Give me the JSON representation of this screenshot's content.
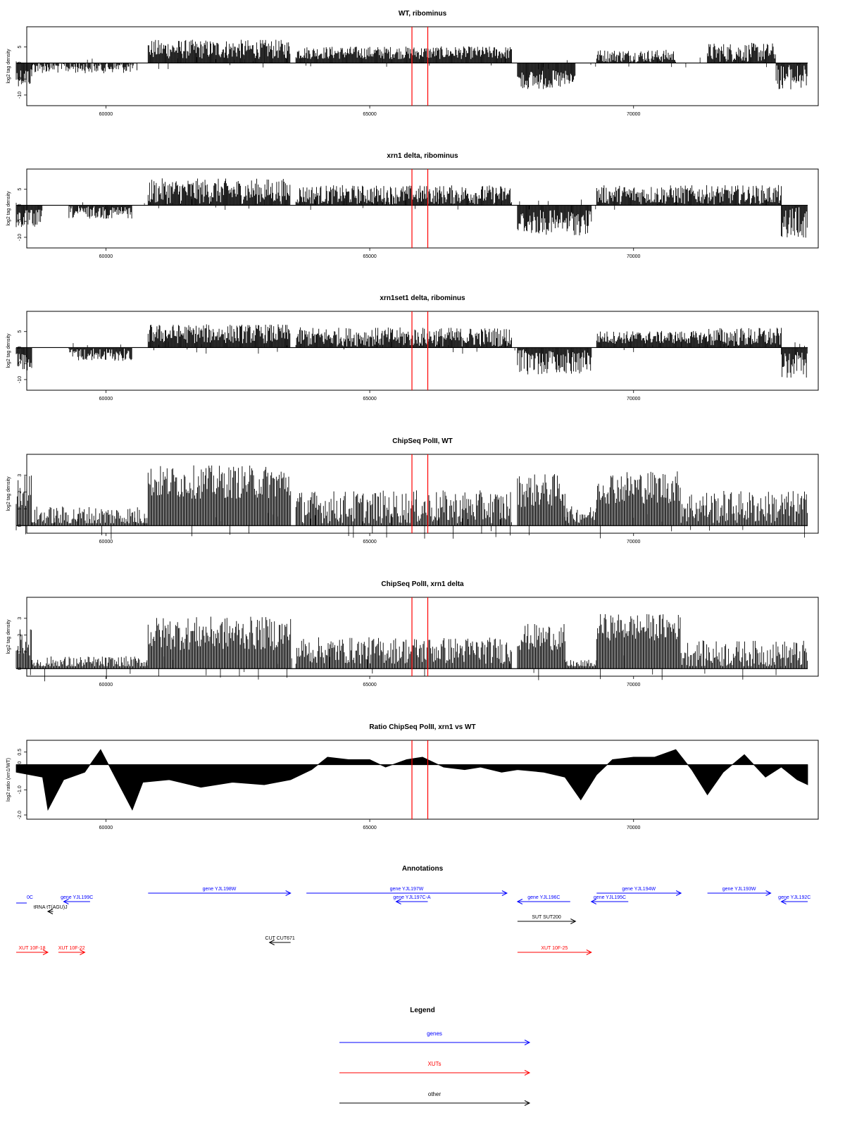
{
  "colors": {
    "axis": "#000000",
    "bars": "#000000",
    "marker": "#ff0000",
    "gene": "#0000ff",
    "xut": "#ff0000",
    "other": "#000000"
  },
  "chart_data": [
    {
      "type": "bar",
      "title": "WT, ribominus",
      "ylabel": "log2 tag density",
      "xlim": [
        58500,
        73500
      ],
      "ylim": [
        -12,
        10
      ],
      "yticks": [
        -10,
        -5,
        0,
        5
      ],
      "xticks": [
        60000,
        65000,
        70000
      ],
      "markers_x": [
        65800,
        66100
      ],
      "segments": [
        {
          "start": 58300,
          "end": 58600,
          "sign": -1,
          "mean": 4,
          "amp": 3
        },
        {
          "start": 58600,
          "end": 60600,
          "sign": -1,
          "mean": 1,
          "amp": 2
        },
        {
          "start": 60800,
          "end": 63500,
          "sign": 1,
          "mean": 4,
          "amp": 3
        },
        {
          "start": 63600,
          "end": 67700,
          "sign": 1,
          "mean": 3,
          "amp": 2
        },
        {
          "start": 67800,
          "end": 68900,
          "sign": -1,
          "mean": 5,
          "amp": 3
        },
        {
          "start": 69300,
          "end": 70800,
          "sign": 1,
          "mean": 2,
          "amp": 2
        },
        {
          "start": 71400,
          "end": 72700,
          "sign": 1,
          "mean": 3,
          "amp": 3
        },
        {
          "start": 72700,
          "end": 73300,
          "sign": -1,
          "mean": 4,
          "amp": 4
        }
      ]
    },
    {
      "type": "bar",
      "title": "xrn1 delta, ribominus",
      "ylabel": "log2 tag density",
      "xlim": [
        58500,
        73500
      ],
      "ylim": [
        -12,
        10
      ],
      "yticks": [
        -10,
        -5,
        0,
        5
      ],
      "xticks": [
        60000,
        65000,
        70000
      ],
      "markers_x": [
        65800,
        66100
      ],
      "segments": [
        {
          "start": 58300,
          "end": 58800,
          "sign": -1,
          "mean": 4,
          "amp": 3
        },
        {
          "start": 59300,
          "end": 60500,
          "sign": -1,
          "mean": 2,
          "amp": 2
        },
        {
          "start": 60800,
          "end": 63500,
          "sign": 1,
          "mean": 4,
          "amp": 4
        },
        {
          "start": 63600,
          "end": 67700,
          "sign": 1,
          "mean": 3,
          "amp": 3
        },
        {
          "start": 67800,
          "end": 69200,
          "sign": -1,
          "mean": 5,
          "amp": 4
        },
        {
          "start": 69300,
          "end": 71400,
          "sign": 1,
          "mean": 3,
          "amp": 3
        },
        {
          "start": 71400,
          "end": 72800,
          "sign": 1,
          "mean": 3,
          "amp": 3
        },
        {
          "start": 72800,
          "end": 73300,
          "sign": -1,
          "mean": 5,
          "amp": 5
        }
      ]
    },
    {
      "type": "bar",
      "title": "xrn1set1 delta, ribominus",
      "ylabel": "log2 tag density",
      "xlim": [
        58500,
        73500
      ],
      "ylim": [
        -12,
        10
      ],
      "yticks": [
        -10,
        -5,
        0,
        5
      ],
      "xticks": [
        60000,
        65000,
        70000
      ],
      "markers_x": [
        65800,
        66100
      ],
      "segments": [
        {
          "start": 58300,
          "end": 58600,
          "sign": -1,
          "mean": 4,
          "amp": 3
        },
        {
          "start": 59300,
          "end": 60500,
          "sign": -1,
          "mean": 2,
          "amp": 2
        },
        {
          "start": 60800,
          "end": 63500,
          "sign": 1,
          "mean": 4,
          "amp": 3
        },
        {
          "start": 63600,
          "end": 67700,
          "sign": 1,
          "mean": 3,
          "amp": 3
        },
        {
          "start": 67800,
          "end": 69200,
          "sign": -1,
          "mean": 4,
          "amp": 4
        },
        {
          "start": 69300,
          "end": 71400,
          "sign": 1,
          "mean": 3,
          "amp": 2
        },
        {
          "start": 71400,
          "end": 72800,
          "sign": 1,
          "mean": 3,
          "amp": 3
        },
        {
          "start": 72800,
          "end": 73300,
          "sign": -1,
          "mean": 5,
          "amp": 4
        }
      ]
    },
    {
      "type": "bar",
      "title": "ChipSeq PolII, WT",
      "ylabel": "log2 tag density",
      "xlim": [
        58500,
        73500
      ],
      "ylim": [
        -0.2,
        4
      ],
      "yticks": [
        0,
        1,
        2,
        3
      ],
      "xticks": [
        60000,
        65000,
        70000
      ],
      "markers_x": [
        65800,
        66100
      ],
      "segments": [
        {
          "start": 58300,
          "end": 58600,
          "sign": 1,
          "mean": 2,
          "amp": 1
        },
        {
          "start": 58600,
          "end": 60800,
          "sign": 1,
          "mean": 0.5,
          "amp": 0.6
        },
        {
          "start": 60800,
          "end": 63500,
          "sign": 1,
          "mean": 2.5,
          "amp": 1
        },
        {
          "start": 63600,
          "end": 67700,
          "sign": 1,
          "mean": 1,
          "amp": 1
        },
        {
          "start": 67800,
          "end": 68700,
          "sign": 1,
          "mean": 2,
          "amp": 1
        },
        {
          "start": 68700,
          "end": 69300,
          "sign": 1,
          "mean": 0.6,
          "amp": 0.5
        },
        {
          "start": 69300,
          "end": 70900,
          "sign": 1,
          "mean": 2.2,
          "amp": 1
        },
        {
          "start": 70900,
          "end": 73300,
          "sign": 1,
          "mean": 1,
          "amp": 1
        }
      ]
    },
    {
      "type": "bar",
      "title": "ChipSeq PolII, xrn1 delta",
      "ylabel": "log2 tag density",
      "xlim": [
        58500,
        73500
      ],
      "ylim": [
        -0.2,
        4
      ],
      "yticks": [
        0,
        1,
        2,
        3
      ],
      "xticks": [
        60000,
        65000,
        70000
      ],
      "markers_x": [
        65800,
        66100
      ],
      "segments": [
        {
          "start": 58300,
          "end": 58600,
          "sign": 1,
          "mean": 1.5,
          "amp": 0.8
        },
        {
          "start": 58600,
          "end": 60800,
          "sign": 1,
          "mean": 0.3,
          "amp": 0.4
        },
        {
          "start": 60800,
          "end": 63500,
          "sign": 1,
          "mean": 2,
          "amp": 1
        },
        {
          "start": 63600,
          "end": 67700,
          "sign": 1,
          "mean": 1,
          "amp": 0.8
        },
        {
          "start": 67800,
          "end": 68700,
          "sign": 1,
          "mean": 1.8,
          "amp": 0.8
        },
        {
          "start": 68700,
          "end": 69300,
          "sign": 1,
          "mean": 0.2,
          "amp": 0.3
        },
        {
          "start": 69300,
          "end": 70900,
          "sign": 1,
          "mean": 2.4,
          "amp": 0.8
        },
        {
          "start": 70900,
          "end": 73300,
          "sign": 1,
          "mean": 0.8,
          "amp": 0.8
        }
      ]
    },
    {
      "type": "area",
      "title": "Ratio ChipSeq PolII, xrn1 vs WT",
      "ylabel": "log2 ratio (xrn1/WT)",
      "xlim": [
        58500,
        73500
      ],
      "ylim": [
        -2,
        0.8
      ],
      "yticks": [
        -2.0,
        -1.0,
        0.0,
        0.5
      ],
      "xticks": [
        60000,
        65000,
        70000
      ],
      "markers_x": [
        65800,
        66100
      ],
      "x": [
        58300,
        58800,
        58900,
        59200,
        59600,
        59900,
        60300,
        60500,
        60700,
        61200,
        61800,
        62400,
        63000,
        63500,
        63900,
        64200,
        64600,
        65000,
        65300,
        65700,
        66000,
        66400,
        66800,
        67100,
        67500,
        67800,
        68300,
        68700,
        69000,
        69300,
        69600,
        70000,
        70400,
        70800,
        71100,
        71400,
        71700,
        72100,
        72500,
        72800,
        73100,
        73300
      ],
      "y": [
        -0.3,
        -0.5,
        -1.8,
        -0.6,
        -0.3,
        0.6,
        -1.0,
        -1.8,
        -0.7,
        -0.6,
        -0.9,
        -0.7,
        -0.8,
        -0.6,
        -0.2,
        0.3,
        0.2,
        0.2,
        -0.1,
        0.2,
        0.3,
        -0.1,
        -0.2,
        -0.1,
        -0.3,
        -0.2,
        -0.3,
        -0.5,
        -1.4,
        -0.4,
        0.2,
        0.3,
        0.3,
        0.6,
        -0.2,
        -1.2,
        -0.3,
        0.4,
        -0.5,
        -0.1,
        -0.6,
        -0.8
      ]
    }
  ],
  "annotations": {
    "title": "Annotations",
    "xlim": [
      58500,
      73500
    ],
    "features": [
      {
        "label": "gene YJL199C",
        "category": "gene",
        "start": 59200,
        "end": 59700,
        "strand": "-",
        "row": 1
      },
      {
        "label": "gene YJL198W",
        "category": "gene",
        "start": 60800,
        "end": 63500,
        "strand": "+",
        "row": 0
      },
      {
        "label": "gene YJL197W",
        "category": "gene",
        "start": 63800,
        "end": 67600,
        "strand": "+",
        "row": 0
      },
      {
        "label": "gene YJL197C-A",
        "category": "gene",
        "start": 65500,
        "end": 66100,
        "strand": "-",
        "row": 1
      },
      {
        "label": "gene YJL196C",
        "category": "gene",
        "start": 67800,
        "end": 68800,
        "strand": "-",
        "row": 1
      },
      {
        "label": "gene YJL194W",
        "category": "gene",
        "start": 69300,
        "end": 70900,
        "strand": "+",
        "row": 0
      },
      {
        "label": "gene YJL195C",
        "category": "gene",
        "start": 69200,
        "end": 69900,
        "strand": "-",
        "row": 1
      },
      {
        "label": "gene YJL193W",
        "category": "gene",
        "start": 71400,
        "end": 72600,
        "strand": "+",
        "row": 0
      },
      {
        "label": "gene YJL192C",
        "category": "gene",
        "start": 72800,
        "end": 73300,
        "strand": "-",
        "row": 1
      },
      {
        "label": "tRNA tT(AGU)J",
        "category": "other",
        "start": 58900,
        "end": 59000,
        "strand": "-",
        "row": 2
      },
      {
        "label": "SUT SUT200",
        "category": "other",
        "start": 67800,
        "end": 68900,
        "strand": "+",
        "row": 3
      },
      {
        "label": "CUT CUT671",
        "category": "other",
        "start": 63100,
        "end": 63500,
        "strand": "-",
        "row": 4
      },
      {
        "label": "XUT 10F-18",
        "category": "xut",
        "start": 58300,
        "end": 58900,
        "strand": "+",
        "row": 5
      },
      {
        "label": "XUT 10F-22",
        "category": "xut",
        "start": 59100,
        "end": 59600,
        "strand": "+",
        "row": 5
      },
      {
        "label": "XUT 10F-25",
        "category": "xut",
        "start": 67800,
        "end": 69200,
        "strand": "+",
        "row": 5
      }
    ],
    "edge_label": "0C"
  },
  "legend": {
    "title": "Legend",
    "items": [
      {
        "label": "genes",
        "category": "gene"
      },
      {
        "label": "XUTs",
        "category": "xut"
      },
      {
        "label": "other",
        "category": "other"
      }
    ]
  }
}
